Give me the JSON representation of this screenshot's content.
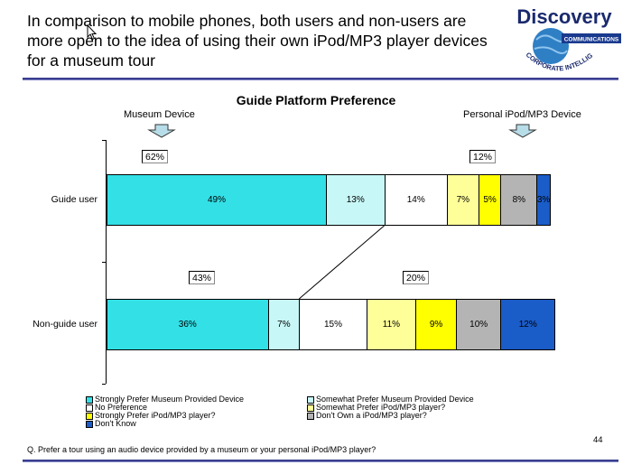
{
  "headline_lines": [
    "In comparison to mobile phones, both users and non-users are",
    "more open to the idea of using their own iPod/MP3 player devices",
    "for a museum tour"
  ],
  "logo": {
    "brand": "Discovery",
    "sub": "COMMUNICATIONS",
    "arc_text": "CORPORATE INTELLIGENCE GROUP",
    "colors": {
      "brand": "#1a2a6e",
      "globe": "#2f7fc4",
      "banner": "#1a3a8e"
    }
  },
  "side_labels": {
    "left": "Museum Device",
    "right": "Personal iPod/MP3 Device"
  },
  "chart_data": {
    "type": "bar",
    "orientation": "horizontal",
    "stacked": true,
    "title": "Guide Platform Preference",
    "categories": [
      "Guide user",
      "Non-guide user"
    ],
    "series": [
      {
        "name": "Strongly Prefer Museum Provided Device",
        "color": "#33e0e6",
        "values": [
          49,
          36
        ],
        "labels": [
          "49%",
          "36%"
        ]
      },
      {
        "name": "Somewhat Prefer Museum Provided Device",
        "color": "#c8f7f7",
        "values": [
          13,
          7
        ],
        "labels": [
          "13%",
          "7%"
        ]
      },
      {
        "name": "No Preference",
        "color": "#ffffff",
        "values": [
          14,
          15
        ],
        "labels": [
          "14%",
          "15%"
        ]
      },
      {
        "name": "Somewhat Prefer iPod/MP3 player?",
        "color": "#ffff99",
        "values": [
          7,
          11
        ],
        "labels": [
          "7%",
          "11%"
        ]
      },
      {
        "name": "Strongly Prefer iPod/MP3 player?",
        "color": "#ffff00",
        "values": [
          5,
          9
        ],
        "labels": [
          "5%",
          "9%"
        ]
      },
      {
        "name": "Don't Own a iPod/MP3 player?",
        "color": "#b4b4b4",
        "values": [
          8,
          10
        ],
        "labels": [
          "8%",
          "10%"
        ]
      },
      {
        "name": "Don't Know",
        "color": "#1a5cc8",
        "values": [
          3,
          12
        ],
        "labels": [
          "3%",
          "12%"
        ]
      }
    ],
    "summaries": [
      {
        "category": "Guide user",
        "museum": "62%",
        "personal": "12%"
      },
      {
        "category": "Non-guide user",
        "museum": "43%",
        "personal": "20%"
      }
    ],
    "xlim": [
      0,
      100
    ]
  },
  "footnote": "Q. Prefer a tour using an audio device provided by a museum or your personal iPod/MP3 player?",
  "page_number": "44"
}
